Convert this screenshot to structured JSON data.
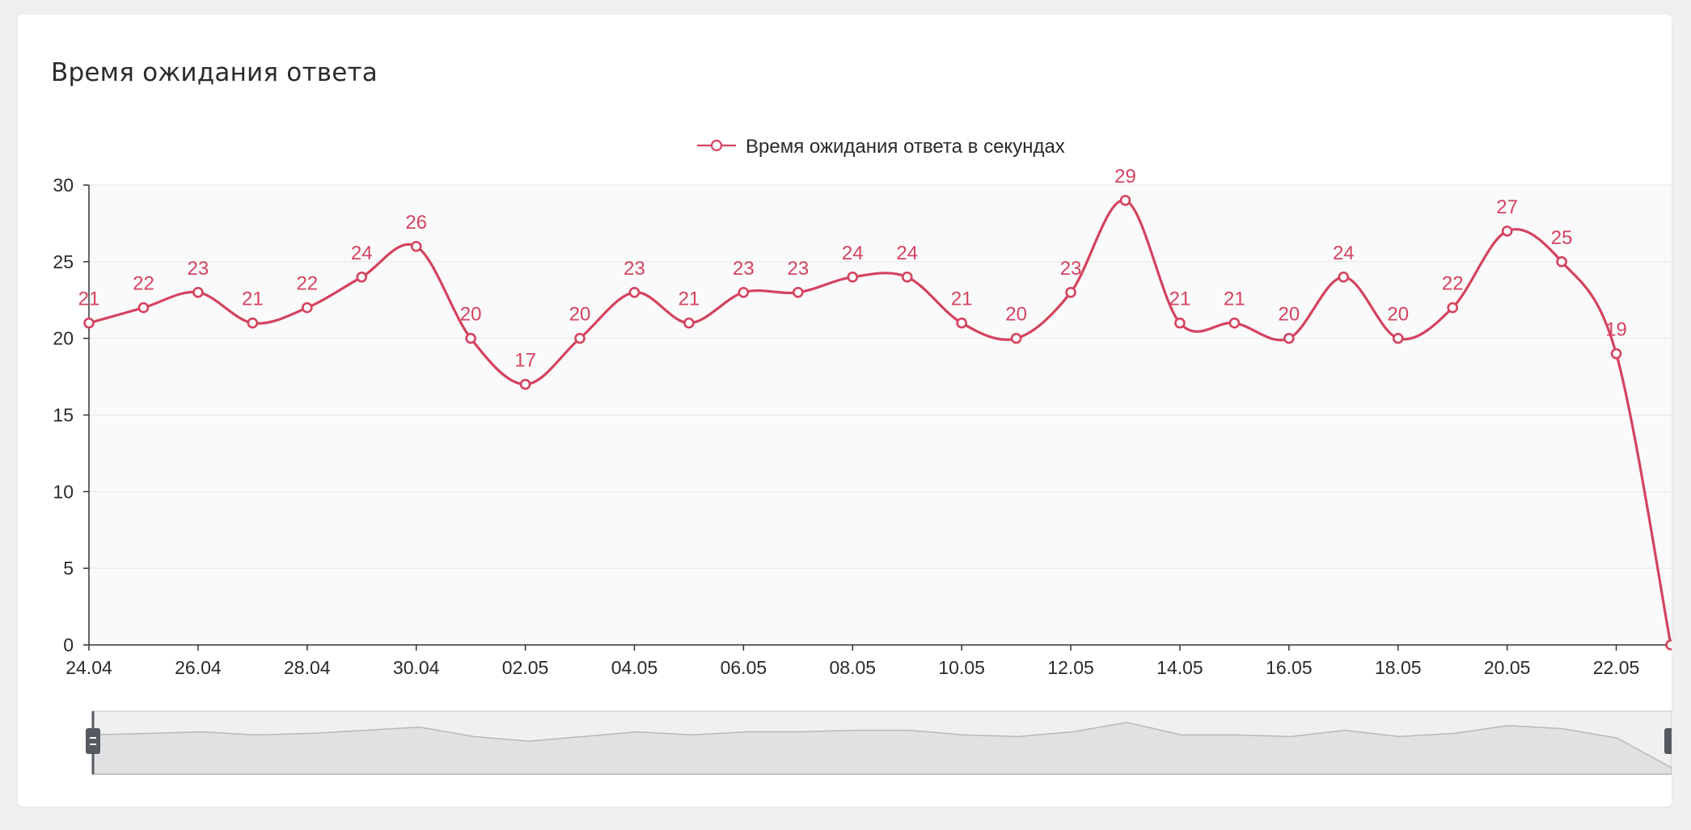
{
  "card": {
    "title": "Время ожидания ответа"
  },
  "colors": {
    "series": "#d4435f",
    "plot_background": "#fafafa",
    "grid": "#e6e6e6",
    "zoom_fill": "#e1e1e3",
    "zoom_line": "#b9b9bd",
    "handle": "#555a60"
  },
  "chart_data": {
    "type": "line",
    "smooth": true,
    "title": "",
    "xlabel": "",
    "ylabel": "",
    "ylim": [
      0,
      30
    ],
    "yticks": [
      0,
      5,
      10,
      15,
      20,
      25,
      30
    ],
    "grid": true,
    "legend": {
      "position": "top-center",
      "marker": "line-circle"
    },
    "categories": [
      "24.04",
      "25.04",
      "26.04",
      "27.04",
      "28.04",
      "29.04",
      "30.04",
      "01.05",
      "02.05",
      "03.05",
      "04.05",
      "05.05",
      "06.05",
      "07.05",
      "08.05",
      "09.05",
      "10.05",
      "11.05",
      "12.05",
      "13.05",
      "14.05",
      "15.05",
      "16.05",
      "17.05",
      "18.05",
      "19.05",
      "20.05",
      "21.05",
      "22.05",
      "23.05"
    ],
    "xtick_labels": [
      "24.04",
      "26.04",
      "28.04",
      "30.04",
      "02.05",
      "04.05",
      "06.05",
      "08.05",
      "10.05",
      "12.05",
      "14.05",
      "16.05",
      "18.05",
      "20.05",
      "22.05"
    ],
    "series": [
      {
        "name": "Время ожидания ответа в секундах",
        "values": [
          21,
          22,
          23,
          21,
          22,
          24,
          26,
          20,
          17,
          20,
          23,
          21,
          23,
          23,
          24,
          24,
          21,
          20,
          23,
          29,
          21,
          21,
          20,
          24,
          20,
          22,
          27,
          25,
          19,
          0
        ],
        "data_labels": [
          "21",
          "22",
          "23",
          "21",
          "22",
          "24",
          "26",
          "20",
          "17",
          "20",
          "23",
          "21",
          "23",
          "23",
          "24",
          "24",
          "21",
          "20",
          "23",
          "29",
          "21",
          "21",
          "20",
          "24",
          "20",
          "22",
          "27",
          "25",
          "19",
          ""
        ]
      }
    ],
    "data_zoom": {
      "start": 0,
      "end": 1
    }
  }
}
